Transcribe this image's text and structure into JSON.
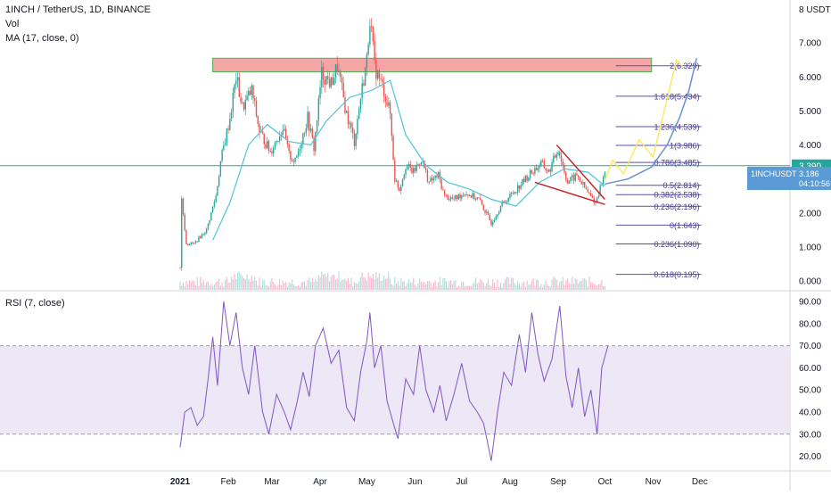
{
  "header": {
    "symbol_line": "1INCH / TetherUS, 1D, BINANCE",
    "vol_label": "Vol",
    "ma_label": "MA (17, close, 0)"
  },
  "rsi_panel": {
    "label": "RSI (7, close)"
  },
  "colors": {
    "up": "#26a69a",
    "down": "#ef5350",
    "ma_line": "#4fc3d9",
    "rsi_line": "#7e57c2",
    "rsi_band": "#ede7f6",
    "fib_line": "#5c4db1",
    "resistance_box": "#f4a6a6",
    "horizontal_level": "#26a69a",
    "wedge_line": "#c62828",
    "projection_yellow": "#fbe84a",
    "projection_blue": "#6a8fd1",
    "last_price_badge": "#5b9bd5",
    "level_badge": "#26a69a"
  },
  "price_axis": {
    "currency": "USDT",
    "top_label": "8",
    "ticks": [
      "7.000",
      "6.000",
      "5.000",
      "4.000",
      "3.000",
      "2.000",
      "1.000",
      "0.000"
    ]
  },
  "rsi_axis": {
    "ticks": [
      "90.00",
      "80.00",
      "70.00",
      "60.00",
      "50.00",
      "40.00",
      "30.00",
      "20.00"
    ]
  },
  "time_axis": {
    "labels": [
      "2021",
      "Feb",
      "Mar",
      "Apr",
      "May",
      "Jun",
      "Jul",
      "Aug",
      "Sep",
      "Oct",
      "Nov",
      "Dec"
    ]
  },
  "badges": {
    "level_price": "3.390",
    "ticker": "1INCHUSDT",
    "last_price": "3.186",
    "countdown": "04:10:56"
  },
  "fib_levels": [
    {
      "label": "2(6.329)",
      "value": 6.329
    },
    {
      "label": "1.618(5.434)",
      "value": 5.434
    },
    {
      "label": "1.236(4.539)",
      "value": 4.539
    },
    {
      "label": "1(3.986)",
      "value": 3.986
    },
    {
      "label": "0.786(3.485)",
      "value": 3.485
    },
    {
      "label": "0.5(2.814)",
      "value": 2.814
    },
    {
      "label": "0.382(2.538)",
      "value": 2.538
    },
    {
      "label": "0.236(2.196)",
      "value": 2.196
    },
    {
      "label": "0(1.643)",
      "value": 1.643
    },
    {
      "label": "0.236(1.090)",
      "value": 1.09
    },
    {
      "label": "0.618(0.195)",
      "value": 0.195
    }
  ],
  "chart_data": {
    "type": "candlestick",
    "interval": "1D",
    "ma_period": 17,
    "rsi_period": 7,
    "x_unit": "date",
    "x_range": [
      "2021-01-01",
      "2021-12-31"
    ],
    "ylim": [
      0,
      8
    ],
    "rsi_ylim": [
      15,
      95
    ],
    "rsi_band": [
      30,
      70
    ],
    "horizontal_level": 3.39,
    "resistance_zone": {
      "from": "2021-01-22",
      "to": "2021-10-31",
      "low": 6.15,
      "high": 6.55
    },
    "wedge": {
      "upper": [
        [
          "2021-08-31",
          4.0
        ],
        [
          "2021-10-01",
          2.4
        ]
      ],
      "lower": [
        [
          "2021-08-17",
          2.9
        ],
        [
          "2021-10-01",
          2.25
        ]
      ]
    },
    "projection_yellow": [
      [
        "2021-10-01",
        2.95
      ],
      [
        "2021-10-06",
        3.55
      ],
      [
        "2021-10-13",
        3.15
      ],
      [
        "2021-10-23",
        4.15
      ],
      [
        "2021-11-01",
        3.65
      ],
      [
        "2021-11-16",
        6.5
      ],
      [
        "2021-11-20",
        6.3
      ]
    ],
    "projection_blue": [
      [
        "2021-10-01",
        2.85
      ],
      [
        "2021-10-16",
        3.0
      ],
      [
        "2021-10-31",
        3.35
      ],
      [
        "2021-11-10",
        4.0
      ],
      [
        "2021-11-18",
        4.8
      ],
      [
        "2021-11-24",
        5.6
      ],
      [
        "2021-11-29",
        6.55
      ]
    ],
    "price_path": [
      [
        "2021-01-01",
        0.4
      ],
      [
        "2021-01-02",
        2.4
      ],
      [
        "2021-01-05",
        1.1
      ],
      [
        "2021-01-10",
        1.1
      ],
      [
        "2021-01-18",
        1.5
      ],
      [
        "2021-01-24",
        2.5
      ],
      [
        "2021-01-27",
        3.5
      ],
      [
        "2021-02-02",
        4.8
      ],
      [
        "2021-02-06",
        6.0
      ],
      [
        "2021-02-10",
        5.1
      ],
      [
        "2021-02-16",
        5.6
      ],
      [
        "2021-02-21",
        4.4
      ],
      [
        "2021-02-28",
        3.8
      ],
      [
        "2021-03-08",
        4.5
      ],
      [
        "2021-03-12",
        3.7
      ],
      [
        "2021-03-16",
        3.5
      ],
      [
        "2021-03-24",
        4.8
      ],
      [
        "2021-03-28",
        3.9
      ],
      [
        "2021-04-02",
        6.1
      ],
      [
        "2021-04-08",
        5.8
      ],
      [
        "2021-04-12",
        6.3
      ],
      [
        "2021-04-18",
        4.9
      ],
      [
        "2021-04-23",
        4.1
      ],
      [
        "2021-04-27",
        5.4
      ],
      [
        "2021-05-01",
        6.5
      ],
      [
        "2021-05-03",
        7.8
      ],
      [
        "2021-05-06",
        6.3
      ],
      [
        "2021-05-12",
        5.6
      ],
      [
        "2021-05-16",
        4.9
      ],
      [
        "2021-05-19",
        3.0
      ],
      [
        "2021-05-22",
        2.7
      ],
      [
        "2021-05-26",
        3.4
      ],
      [
        "2021-05-31",
        3.2
      ],
      [
        "2021-06-05",
        3.6
      ],
      [
        "2021-06-10",
        2.9
      ],
      [
        "2021-06-16",
        3.1
      ],
      [
        "2021-06-20",
        2.5
      ],
      [
        "2021-06-26",
        2.4
      ],
      [
        "2021-07-03",
        2.6
      ],
      [
        "2021-07-12",
        2.4
      ],
      [
        "2021-07-20",
        1.7
      ],
      [
        "2021-07-26",
        2.2
      ],
      [
        "2021-08-05",
        2.7
      ],
      [
        "2021-08-15",
        3.2
      ],
      [
        "2021-08-21",
        3.45
      ],
      [
        "2021-08-26",
        3.2
      ],
      [
        "2021-09-01",
        3.9
      ],
      [
        "2021-09-07",
        2.9
      ],
      [
        "2021-09-13",
        3.1
      ],
      [
        "2021-09-20",
        2.6
      ],
      [
        "2021-09-25",
        2.3
      ],
      [
        "2021-10-01",
        3.19
      ]
    ],
    "ma_path": [
      [
        "2021-01-22",
        1.2
      ],
      [
        "2021-02-02",
        2.3
      ],
      [
        "2021-02-14",
        4.0
      ],
      [
        "2021-02-26",
        4.6
      ],
      [
        "2021-03-12",
        4.1
      ],
      [
        "2021-03-26",
        4.0
      ],
      [
        "2021-04-05",
        4.7
      ],
      [
        "2021-04-20",
        5.4
      ],
      [
        "2021-05-04",
        5.6
      ],
      [
        "2021-05-16",
        5.9
      ],
      [
        "2021-05-26",
        4.3
      ],
      [
        "2021-06-08",
        3.4
      ],
      [
        "2021-06-22",
        2.9
      ],
      [
        "2021-07-06",
        2.7
      ],
      [
        "2021-07-20",
        2.4
      ],
      [
        "2021-08-05",
        2.2
      ],
      [
        "2021-08-20",
        2.9
      ],
      [
        "2021-09-05",
        3.3
      ],
      [
        "2021-09-20",
        3.2
      ],
      [
        "2021-10-01",
        2.8
      ]
    ],
    "rsi_path": [
      [
        "2021-01-01",
        24
      ],
      [
        "2021-01-04",
        40
      ],
      [
        "2021-01-08",
        42
      ],
      [
        "2021-01-12",
        34
      ],
      [
        "2021-01-16",
        38
      ],
      [
        "2021-01-19",
        55
      ],
      [
        "2021-01-22",
        74
      ],
      [
        "2021-01-25",
        52
      ],
      [
        "2021-01-29",
        90
      ],
      [
        "2021-02-02",
        70
      ],
      [
        "2021-02-06",
        85
      ],
      [
        "2021-02-10",
        60
      ],
      [
        "2021-02-14",
        48
      ],
      [
        "2021-02-18",
        70
      ],
      [
        "2021-02-23",
        40
      ],
      [
        "2021-02-27",
        30
      ],
      [
        "2021-03-04",
        48
      ],
      [
        "2021-03-09",
        40
      ],
      [
        "2021-03-13",
        32
      ],
      [
        "2021-03-17",
        44
      ],
      [
        "2021-03-21",
        58
      ],
      [
        "2021-03-25",
        47
      ],
      [
        "2021-03-29",
        70
      ],
      [
        "2021-04-03",
        78
      ],
      [
        "2021-04-08",
        62
      ],
      [
        "2021-04-13",
        68
      ],
      [
        "2021-04-18",
        42
      ],
      [
        "2021-04-23",
        36
      ],
      [
        "2021-04-27",
        58
      ],
      [
        "2021-05-01",
        72
      ],
      [
        "2021-05-03",
        85
      ],
      [
        "2021-05-06",
        60
      ],
      [
        "2021-05-10",
        70
      ],
      [
        "2021-05-14",
        45
      ],
      [
        "2021-05-18",
        35
      ],
      [
        "2021-05-21",
        28
      ],
      [
        "2021-05-26",
        55
      ],
      [
        "2021-05-31",
        48
      ],
      [
        "2021-06-04",
        70
      ],
      [
        "2021-06-08",
        50
      ],
      [
        "2021-06-13",
        40
      ],
      [
        "2021-06-17",
        52
      ],
      [
        "2021-06-21",
        36
      ],
      [
        "2021-06-26",
        48
      ],
      [
        "2021-07-01",
        62
      ],
      [
        "2021-07-06",
        45
      ],
      [
        "2021-07-11",
        40
      ],
      [
        "2021-07-15",
        35
      ],
      [
        "2021-07-20",
        18
      ],
      [
        "2021-07-24",
        40
      ],
      [
        "2021-07-28",
        58
      ],
      [
        "2021-08-02",
        52
      ],
      [
        "2021-08-07",
        75
      ],
      [
        "2021-08-11",
        58
      ],
      [
        "2021-08-15",
        85
      ],
      [
        "2021-08-19",
        66
      ],
      [
        "2021-08-23",
        54
      ],
      [
        "2021-08-28",
        64
      ],
      [
        "2021-09-02",
        88
      ],
      [
        "2021-09-06",
        56
      ],
      [
        "2021-09-10",
        42
      ],
      [
        "2021-09-14",
        60
      ],
      [
        "2021-09-18",
        38
      ],
      [
        "2021-09-22",
        50
      ],
      [
        "2021-09-26",
        30
      ],
      [
        "2021-09-29",
        60
      ],
      [
        "2021-10-03",
        70
      ]
    ]
  }
}
